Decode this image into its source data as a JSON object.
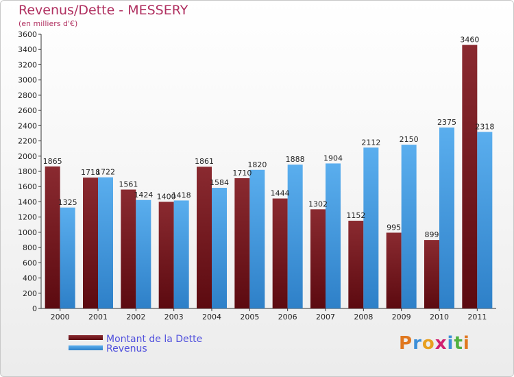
{
  "chart_data": {
    "type": "bar",
    "title": "Revenus/Dette - MESSERY",
    "subtitle": "(en milliers d'€)",
    "categories": [
      "2000",
      "2001",
      "2002",
      "2003",
      "2004",
      "2005",
      "2006",
      "2007",
      "2008",
      "2009",
      "2010",
      "2011"
    ],
    "series": [
      {
        "name": "Montant de la Dette",
        "color": "#7a1c22",
        "values": [
          1865,
          1718,
          1561,
          1400,
          1861,
          1710,
          1444,
          1302,
          1152,
          995,
          899,
          3460
        ]
      },
      {
        "name": "Revenus",
        "color": "#4fa3e6",
        "values": [
          1325,
          1722,
          1424,
          1418,
          1584,
          1820,
          1888,
          1904,
          2112,
          2150,
          2375,
          2318
        ]
      }
    ],
    "ylim": [
      0,
      3600
    ],
    "yticks": [
      0,
      200,
      400,
      600,
      800,
      1000,
      1200,
      1400,
      1600,
      1800,
      2000,
      2200,
      2400,
      2600,
      2800,
      3000,
      3200,
      3400,
      3600
    ],
    "grid": false,
    "legend_position": "bottom-left"
  },
  "logo": {
    "text": "Proxiti",
    "colors": [
      "#e07820",
      "#3c8fd8",
      "#e8a020",
      "#d02070",
      "#3c8fd8",
      "#50b040",
      "#e07820"
    ]
  }
}
